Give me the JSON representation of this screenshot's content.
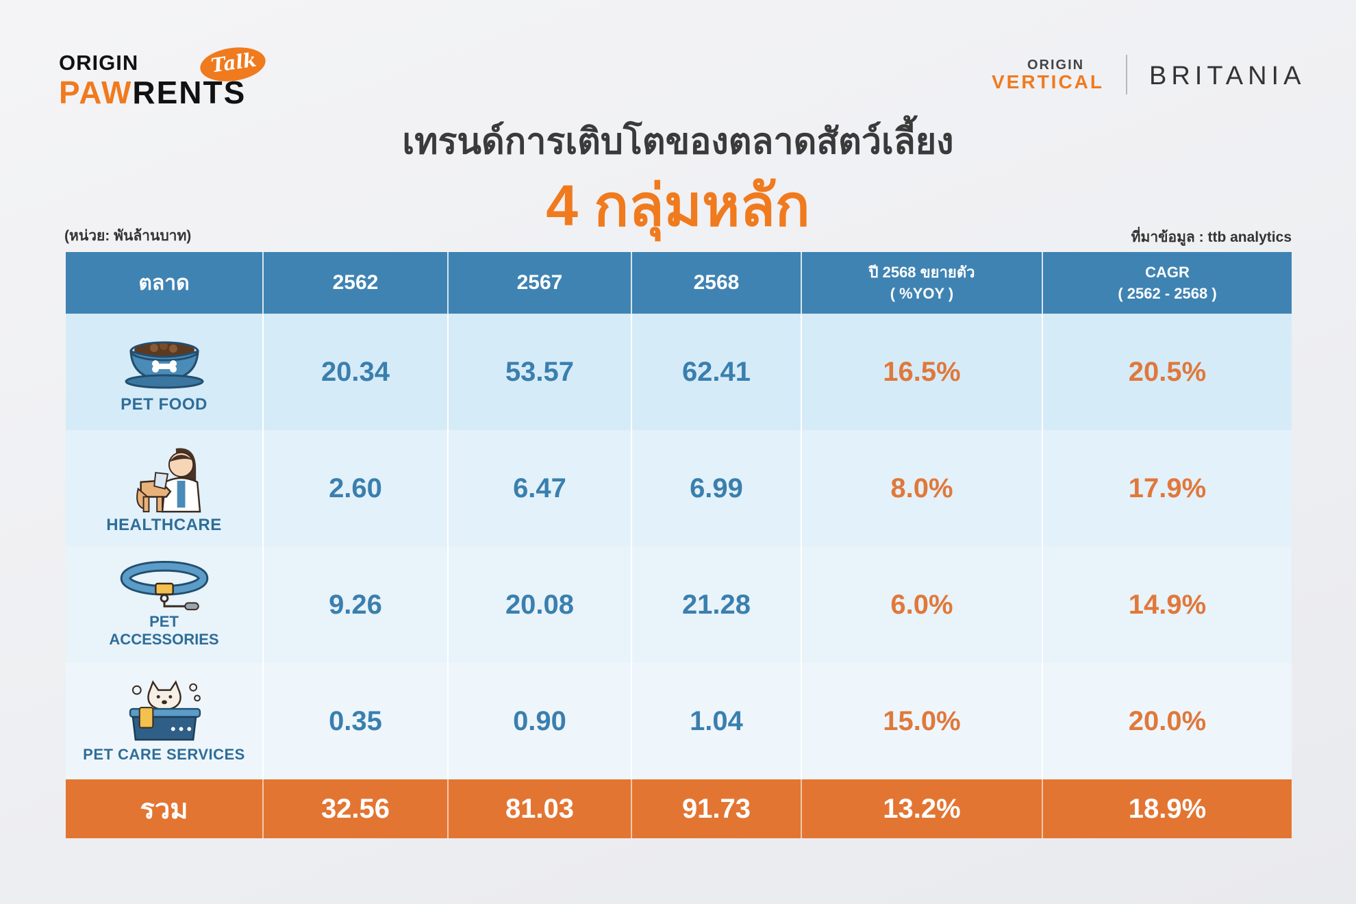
{
  "logos": {
    "left": {
      "line1": "ORIGIN",
      "paw_orange": "PAW",
      "paw_dark": "RENTS",
      "talk": "Talk"
    },
    "right": {
      "origin": "ORIGIN",
      "vertical": "VERTICAL",
      "partner": "BRITANIA"
    }
  },
  "header": {
    "title": "เทรนด์การเติบโตของตลาดสัตว์เลี้ยง",
    "subtitle": "4 กลุ่มหลัก",
    "unit": "(หน่วย: พันล้านบาท)",
    "source": "ที่มาข้อมูล : ttb analytics"
  },
  "colors": {
    "accent": "#f07a1e",
    "header_blue": "#3f83b3",
    "value_blue": "#3a7fae",
    "pct_orange": "#e0783a",
    "total_bar": "#e37532"
  },
  "chart_data": {
    "type": "table",
    "columns": [
      "ตลาด",
      "2562",
      "2567",
      "2568",
      "ปี 2568 ขยายตัว ( %YOY )",
      "CAGR ( 2562 - 2568 )"
    ],
    "column_lines": {
      "yoy": [
        "ปี 2568 ขยายตัว",
        "( %YOY )"
      ],
      "cagr": [
        "CAGR",
        "( 2562 - 2568 )"
      ]
    },
    "rows": [
      {
        "market": "PET FOOD",
        "icon": "pet-food-bowl-icon",
        "y2562": "20.34",
        "y2567": "53.57",
        "y2568": "62.41",
        "yoy": "16.5%",
        "cagr": "20.5%"
      },
      {
        "market": "HEALTHCARE",
        "icon": "vet-with-dog-icon",
        "y2562": "2.60",
        "y2567": "6.47",
        "y2568": "6.99",
        "yoy": "8.0%",
        "cagr": "17.9%"
      },
      {
        "market_lines": [
          "PET",
          "ACCESSORIES"
        ],
        "icon": "pet-collar-icon",
        "y2562": "9.26",
        "y2567": "20.08",
        "y2568": "21.28",
        "yoy": "6.0%",
        "cagr": "14.9%"
      },
      {
        "market": "PET CARE SERVICES",
        "icon": "pet-bath-icon",
        "y2562": "0.35",
        "y2567": "0.90",
        "y2568": "1.04",
        "yoy": "15.0%",
        "cagr": "20.0%"
      }
    ],
    "total": {
      "label": "รวม",
      "y2562": "32.56",
      "y2567": "81.03",
      "y2568": "91.73",
      "yoy": "13.2%",
      "cagr": "18.9%"
    }
  }
}
